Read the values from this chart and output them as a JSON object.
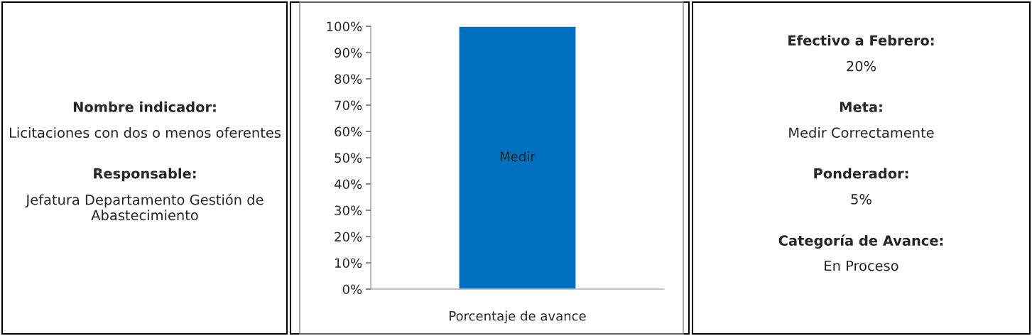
{
  "chart_data": [
    {
      "type": "other",
      "annotations": [
        "Nombre indicador:",
        "Licitaciones con dos o menos oferentes",
        "Responsable:",
        "Jefatura Departamento Gestión de Abastecimiento"
      ]
    },
    {
      "type": "bar",
      "categories": [
        "Porcentaje de avance"
      ],
      "values": [
        100
      ],
      "color": "#0070c0",
      "value_labels": [
        "Medir"
      ],
      "ylim": [
        0,
        100
      ],
      "yticks": [
        {
          "value": 0,
          "label": "0%"
        },
        {
          "value": 10,
          "label": "10%"
        },
        {
          "value": 20,
          "label": "20%"
        },
        {
          "value": 30,
          "label": "30%"
        },
        {
          "value": 40,
          "label": "40%"
        },
        {
          "value": 50,
          "label": "50%"
        },
        {
          "value": 60,
          "label": "60%"
        },
        {
          "value": 70,
          "label": "70%"
        },
        {
          "value": 80,
          "label": "80%"
        },
        {
          "value": 90,
          "label": "90%"
        },
        {
          "value": 100,
          "label": "100%"
        }
      ],
      "grid": false,
      "legend": false
    },
    {
      "type": "other",
      "annotations": [
        "Efectivo a Febrero:",
        "20%",
        "Meta:",
        "Medir Correctamente",
        "Ponderador:",
        "5%",
        "Categoría de Avance:",
        "En Proceso"
      ]
    }
  ]
}
